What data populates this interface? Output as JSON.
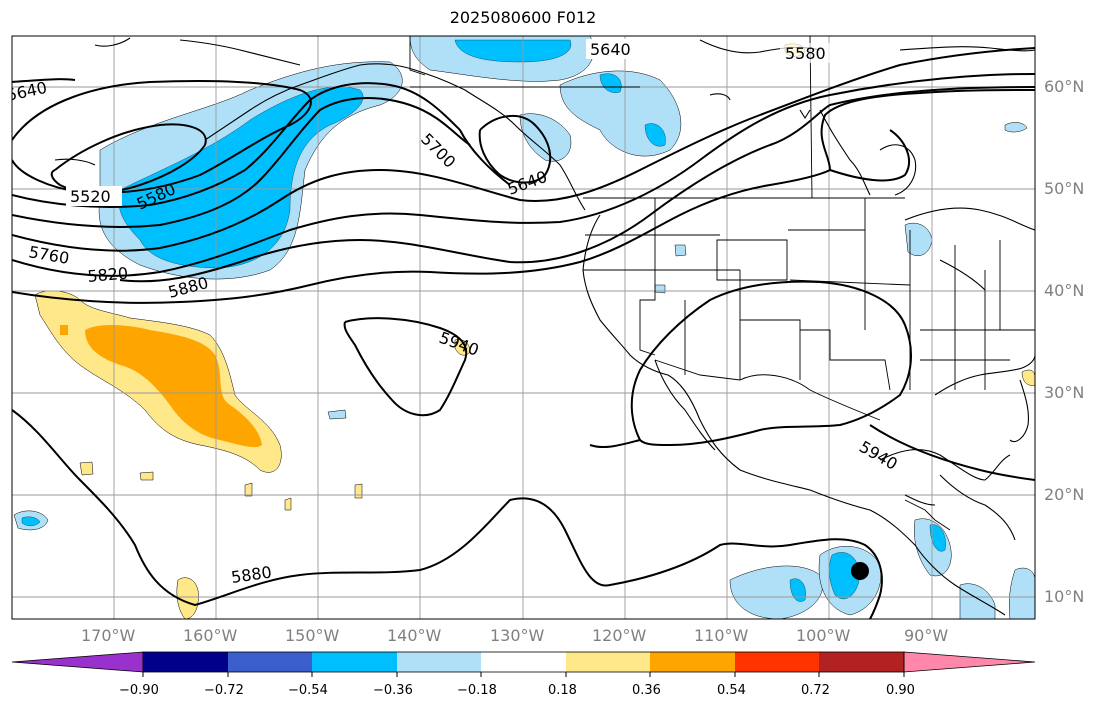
{
  "title": "2025080600 F012",
  "lon_labels": [
    "170°W",
    "160°W",
    "150°W",
    "140°W",
    "130°W",
    "120°W",
    "110°W",
    "100°W",
    "90°W"
  ],
  "lat_labels": [
    "60°N",
    "50°N",
    "40°N",
    "30°N",
    "20°N",
    "10°N"
  ],
  "contour_labels": [
    "5640",
    "5580",
    "5520",
    "5580",
    "5700",
    "5640",
    "5760",
    "5820",
    "5880",
    "5940",
    "5940",
    "5880",
    "5640"
  ],
  "colorbar": {
    "labels": [
      "−0.90",
      "−0.72",
      "−0.54",
      "−0.36",
      "−0.18",
      "0.18",
      "0.36",
      "0.54",
      "0.72",
      "0.90"
    ],
    "colors": [
      "#9932cc",
      "#00008b",
      "#3a5fcd",
      "#00bfff",
      "#afe0f8",
      "#ffffff",
      "#ffe88a",
      "#ffa500",
      "#ff3300",
      "#b22222",
      "#ff88aa"
    ]
  },
  "colors": {
    "light_blue": "#afe0f8",
    "blue": "#00bfff",
    "yellow": "#ffe88a",
    "orange": "#ffa500",
    "contour": "#000000",
    "grid": "#999999"
  },
  "marker": "storm-center-dot"
}
